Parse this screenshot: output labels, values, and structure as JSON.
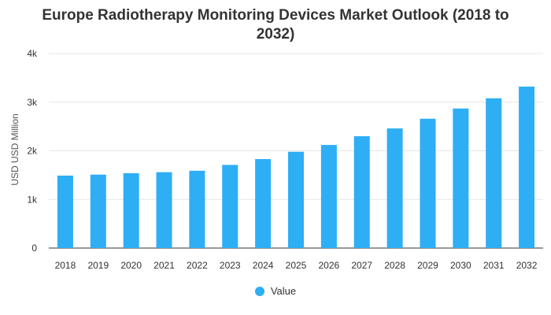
{
  "chart_data": {
    "type": "bar",
    "title": "Europe Radiotherapy Monitoring Devices Market Outlook (2018 to 2032)",
    "title_lines": [
      "Europe Radiotherapy Monitoring Devices Market Outlook (2018 to",
      "2032)"
    ],
    "xlabel": "",
    "ylabel": "USD USD Million",
    "categories": [
      "2018",
      "2019",
      "2020",
      "2021",
      "2022",
      "2023",
      "2024",
      "2025",
      "2026",
      "2027",
      "2028",
      "2029",
      "2030",
      "2031",
      "2032"
    ],
    "series": [
      {
        "name": "Value",
        "values": [
          1490,
          1510,
          1540,
          1560,
          1590,
          1710,
          1830,
          1980,
          2120,
          2300,
          2460,
          2660,
          2870,
          3080,
          3320
        ]
      }
    ],
    "ylim": [
      0,
      4000
    ],
    "yticks": [
      0,
      1000,
      2000,
      3000,
      4000
    ],
    "ytick_labels": [
      "0",
      "1k",
      "2k",
      "3k",
      "4k"
    ],
    "grid": true,
    "legend_position": "bottom-center",
    "color": "#2EAEF5"
  }
}
